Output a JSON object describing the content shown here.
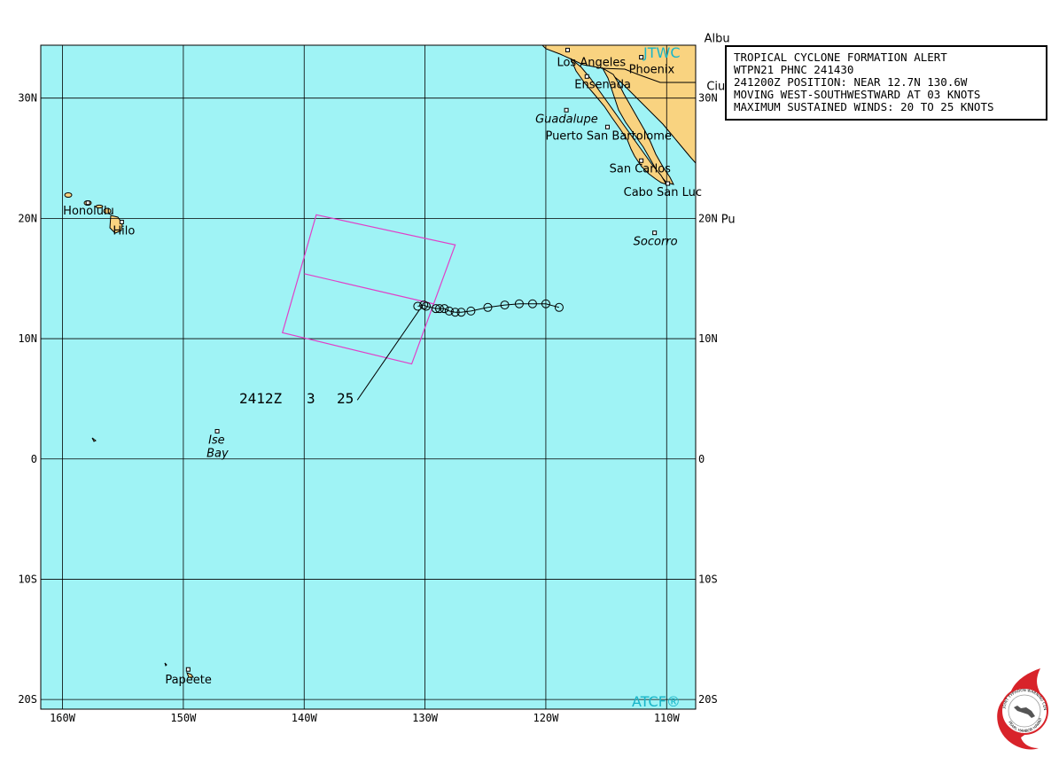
{
  "map": {
    "lon_range": [
      -161.8,
      -107.6
    ],
    "lat_range": [
      -20.8,
      34.4
    ],
    "background_color": "#9ff3f5",
    "land_color": "#f9d380",
    "grid_color": "#000000",
    "lon_ticks": [
      {
        "lon": -160,
        "label": "160W"
      },
      {
        "lon": -150,
        "label": "150W"
      },
      {
        "lon": -140,
        "label": "140W"
      },
      {
        "lon": -130,
        "label": "130W"
      },
      {
        "lon": -120,
        "label": "120W"
      },
      {
        "lon": -110,
        "label": "110W"
      }
    ],
    "lat_ticks": [
      {
        "lat": 30,
        "label": "30N"
      },
      {
        "lat": 20,
        "label": "20N"
      },
      {
        "lat": 10,
        "label": "10N"
      },
      {
        "lat": 0,
        "label": "0"
      },
      {
        "lat": -10,
        "label": "10S"
      },
      {
        "lat": -20,
        "label": "20S"
      }
    ],
    "places": [
      {
        "name": "Los Angeles",
        "lon": -118.2,
        "lat": 34.0,
        "style": "normal"
      },
      {
        "name": "Phoenix",
        "lon": -112.1,
        "lat": 33.4,
        "style": "normal"
      },
      {
        "name": "Albu",
        "lon": -106.6,
        "lat": 35.1,
        "style": "normal"
      },
      {
        "name": "Ciuda",
        "lon": -106.4,
        "lat": 31.7,
        "style": "normal"
      },
      {
        "name": "Ensenada",
        "lon": -116.6,
        "lat": 31.8,
        "style": "normal"
      },
      {
        "name": "Guadalupe",
        "lon": -118.3,
        "lat": 29.0,
        "style": "italic"
      },
      {
        "name": "Puerto San Bartolome",
        "lon": -114.9,
        "lat": 27.6,
        "style": "normal"
      },
      {
        "name": "San Carlos",
        "lon": -112.1,
        "lat": 24.8,
        "style": "normal"
      },
      {
        "name": "Cabo San Luc",
        "lon": -109.9,
        "lat": 22.9,
        "style": "normal"
      },
      {
        "name": "Pu",
        "lon": -105.2,
        "lat": 20.6,
        "style": "normal"
      },
      {
        "name": "Socorro",
        "lon": -111.0,
        "lat": 18.8,
        "style": "italic"
      },
      {
        "name": "Honolulu",
        "lon": -157.9,
        "lat": 21.3,
        "style": "normal"
      },
      {
        "name": "Hilo",
        "lon": -155.1,
        "lat": 19.7,
        "style": "normal"
      },
      {
        "name": "Ise",
        "lon": -147.2,
        "lat": 2.3,
        "style": "italic"
      },
      {
        "name": "Bay",
        "lon": -147.2,
        "lat": 1.2,
        "style": "italic"
      },
      {
        "name": "Papeete",
        "lon": -149.6,
        "lat": -17.5,
        "style": "normal"
      }
    ],
    "branding": {
      "top": "JTWC",
      "bottom": "ATCF®"
    }
  },
  "track": {
    "points": [
      {
        "lon": -118.9,
        "lat": 12.6
      },
      {
        "lon": -120.0,
        "lat": 12.9
      },
      {
        "lon": -121.1,
        "lat": 12.9
      },
      {
        "lon": -122.2,
        "lat": 12.9
      },
      {
        "lon": -123.4,
        "lat": 12.8
      },
      {
        "lon": -124.8,
        "lat": 12.6
      },
      {
        "lon": -126.2,
        "lat": 12.3
      },
      {
        "lon": -127.0,
        "lat": 12.2
      },
      {
        "lon": -127.5,
        "lat": 12.2
      },
      {
        "lon": -128.0,
        "lat": 12.3
      },
      {
        "lon": -128.4,
        "lat": 12.5
      },
      {
        "lon": -128.8,
        "lat": 12.5
      },
      {
        "lon": -129.1,
        "lat": 12.5
      },
      {
        "lon": -129.9,
        "lat": 12.7
      },
      {
        "lon": -130.1,
        "lat": 12.8
      },
      {
        "lon": -130.6,
        "lat": 12.7
      }
    ],
    "alert_box": {
      "corners": [
        {
          "lon": -139.0,
          "lat": 20.3
        },
        {
          "lon": -127.5,
          "lat": 17.8
        },
        {
          "lon": -131.1,
          "lat": 7.9
        },
        {
          "lon": -141.8,
          "lat": 10.5
        }
      ],
      "mid_line": [
        {
          "lon": -140.0,
          "lat": 15.4
        },
        {
          "lon": -129.3,
          "lat": 12.9
        }
      ],
      "color": "#e040c8"
    },
    "advisory_label": {
      "time": "2412Z",
      "speed": "3",
      "wind": "25",
      "lon": -135.6,
      "lat": 4.9
    }
  },
  "alert": {
    "lines": [
      "TROPICAL CYCLONE FORMATION ALERT",
      "WTPN21 PHNC 241430",
      "241200Z POSITION: NEAR 12.7N 130.6W",
      "MOVING WEST-SOUTHWESTWARD AT 03 KNOTS",
      "MAXIMUM SUSTAINED WINDS: 20 TO 25 KNOTS"
    ]
  },
  "seal": {
    "top_text": "JOINT TYPHOON WARNING CENTER",
    "bottom_text": "PEARL HARBOR HAWAII"
  }
}
